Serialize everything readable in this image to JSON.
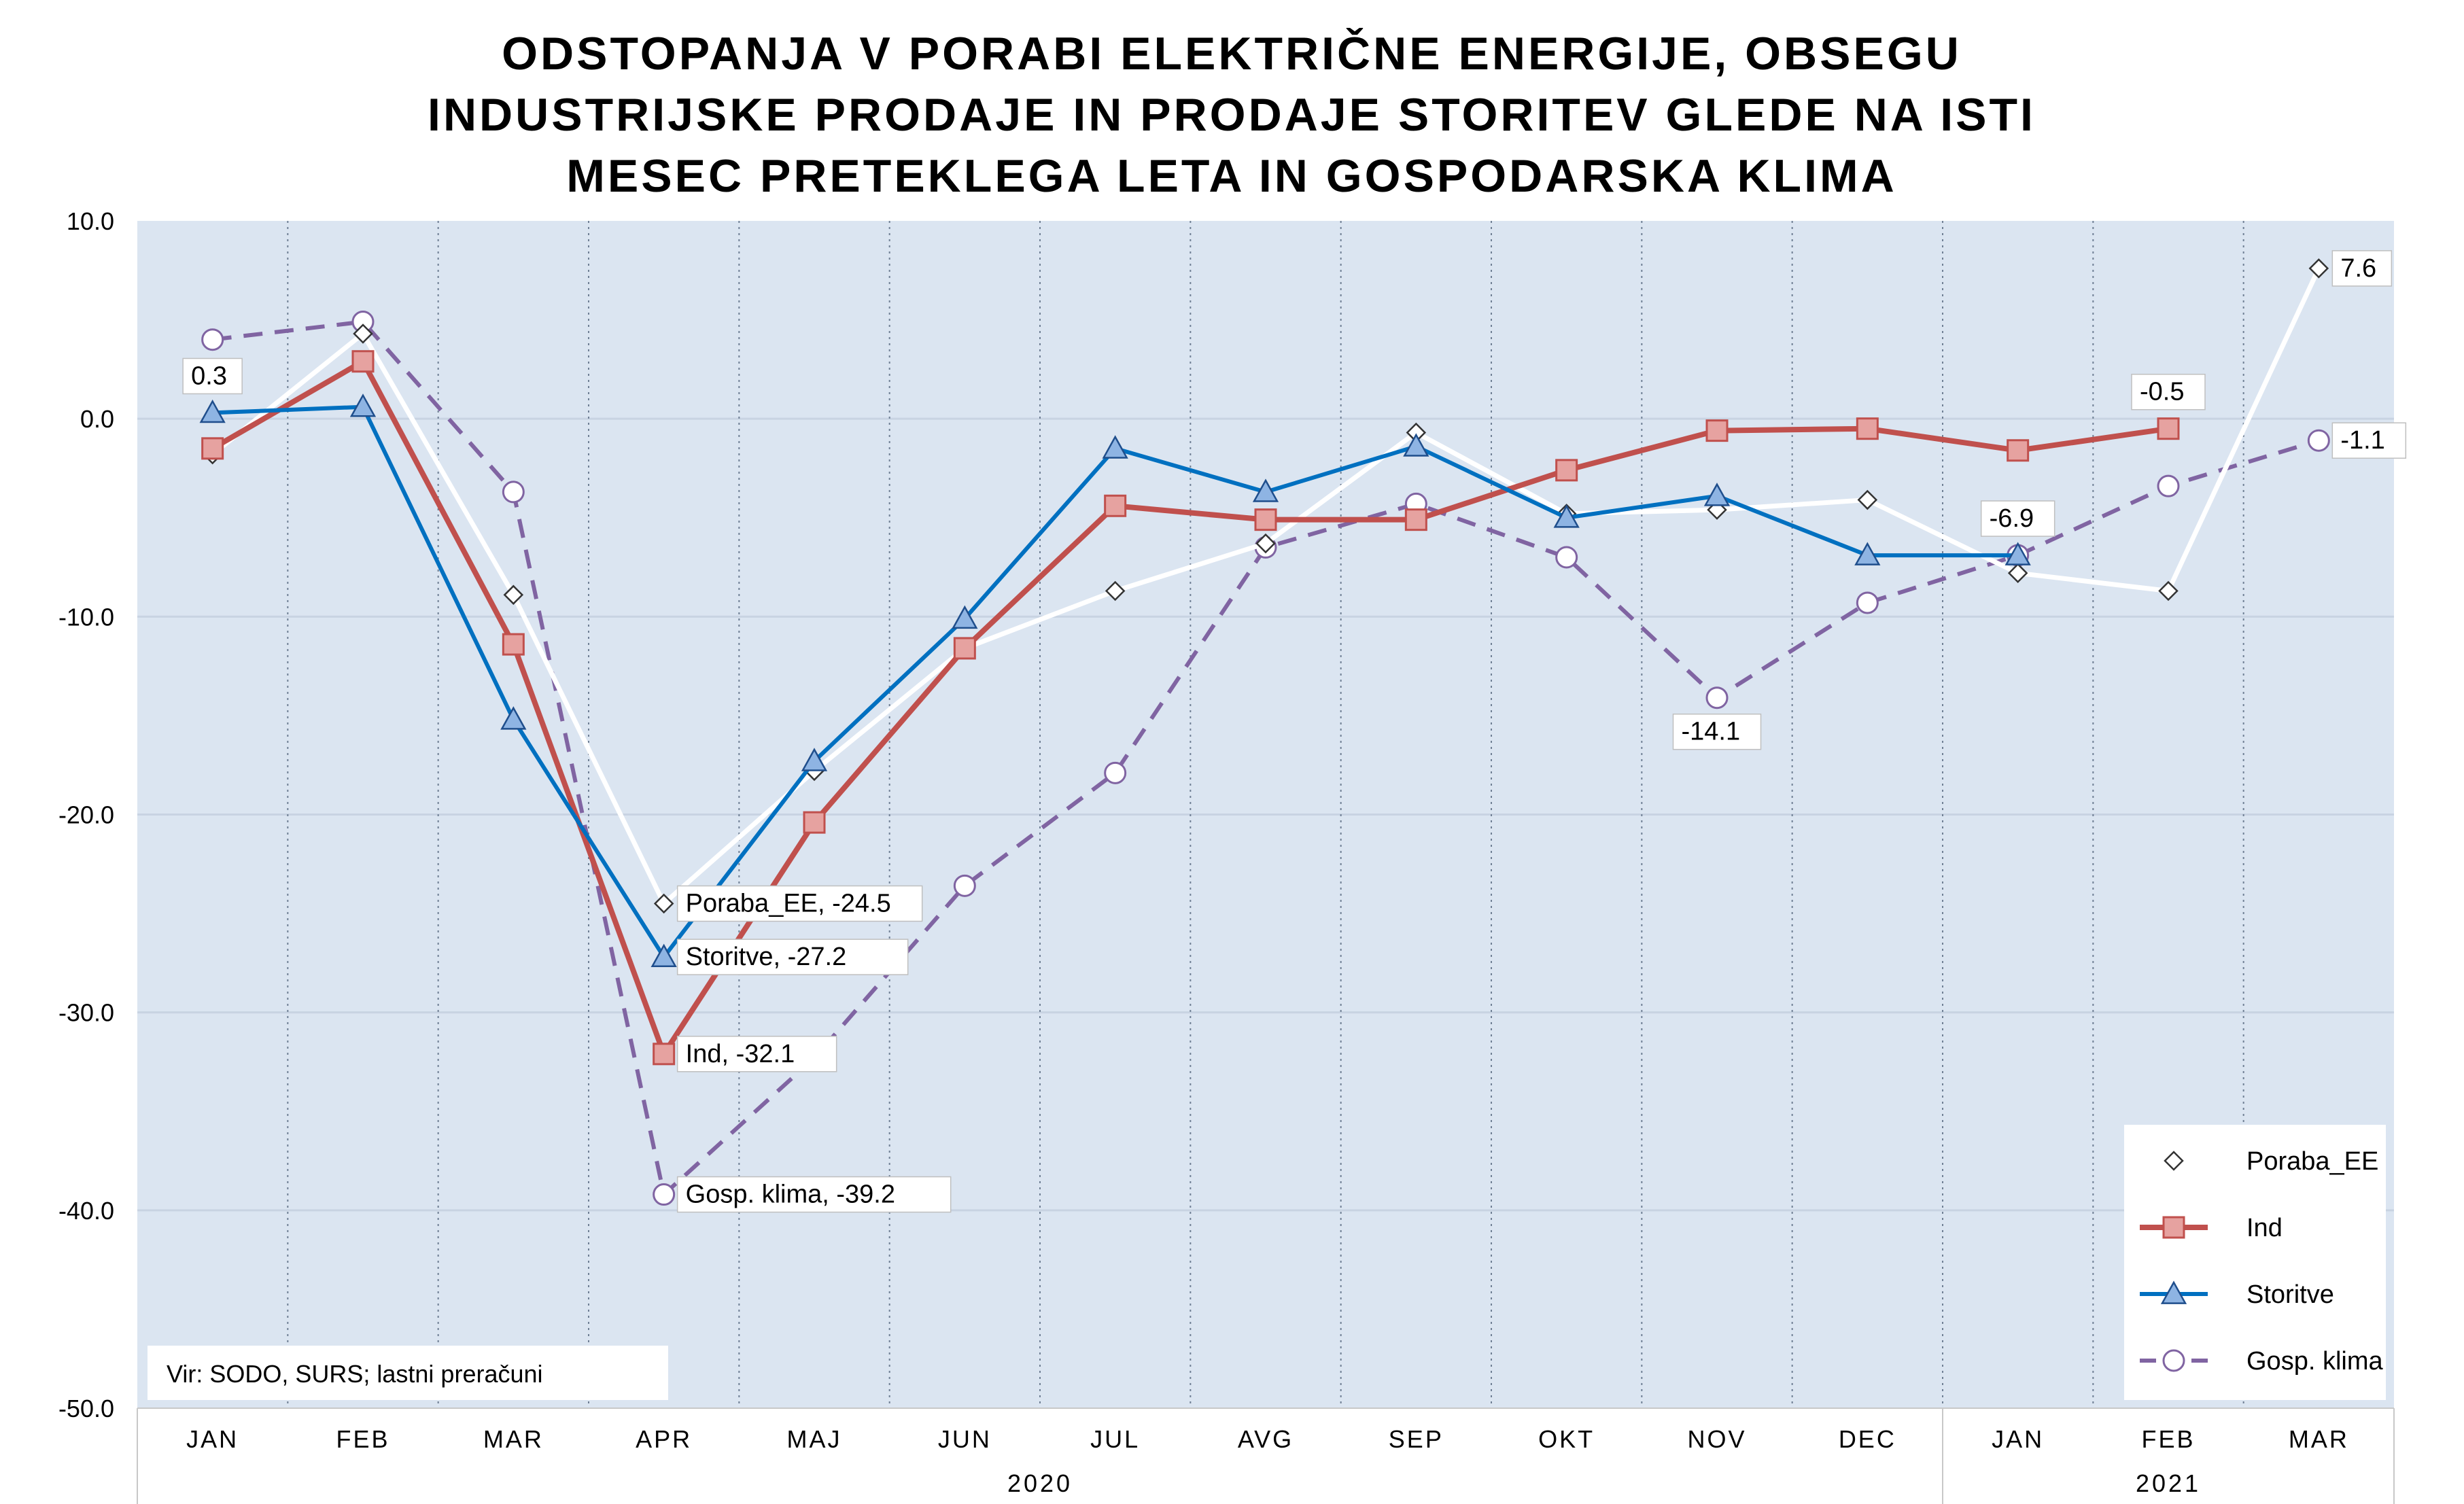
{
  "chart_data": {
    "type": "line",
    "title_lines": [
      "ODSTOPANJA V PORABI ELEKTRIČNE ENERGIJE, OBSEGU",
      "INDUSTRIJSKE PRODAJE IN PRODAJE STORITEV GLEDE NA ISTI",
      "MESEC PRETEKLEGA LETA IN GOSPODARSKA KLIMA"
    ],
    "categories": [
      "JAN",
      "FEB",
      "MAR",
      "APR",
      "MAJ",
      "JUN",
      "JUL",
      "AVG",
      "SEP",
      "OKT",
      "NOV",
      "DEC",
      "JAN",
      "FEB",
      "MAR"
    ],
    "year_groups": [
      {
        "label": "2020",
        "start": 0,
        "end": 11
      },
      {
        "label": "2021",
        "start": 12,
        "end": 14
      }
    ],
    "ylim": [
      -50,
      10
    ],
    "yticks": [
      "10.0",
      "0.0",
      "-10.0",
      "-20.0",
      "-30.0",
      "-40.0",
      "-50.0"
    ],
    "grid": true,
    "legend_position": "bottom-right",
    "source": "Vir: SODO, SURS; lastni preračuni",
    "series": [
      {
        "name": "Poraba_EE",
        "color": "#ffffff",
        "marker": "diamond",
        "values": [
          -1.8,
          4.3,
          -8.9,
          -24.5,
          -17.8,
          -11.6,
          -8.7,
          -6.3,
          -0.7,
          -4.8,
          -4.6,
          -4.1,
          -7.8,
          -8.7,
          7.6
        ]
      },
      {
        "name": "Ind",
        "color": "#c0504d",
        "marker": "square",
        "values": [
          -1.5,
          2.9,
          -11.4,
          -32.1,
          -20.4,
          -11.6,
          -4.4,
          -5.1,
          -5.1,
          -2.6,
          -0.6,
          -0.5,
          -1.6,
          -0.5,
          null
        ]
      },
      {
        "name": "Storitve",
        "color": "#0070c0",
        "marker": "triangle",
        "values": [
          0.3,
          0.6,
          -15.2,
          -27.2,
          -17.3,
          -10.1,
          -1.5,
          -3.7,
          -1.4,
          -5.0,
          -3.9,
          -6.9,
          -6.9,
          null,
          null
        ]
      },
      {
        "name": "Gosp. klima",
        "color": "#8064a2",
        "marker": "circle",
        "values": [
          4.0,
          4.9,
          -3.7,
          -39.2,
          -32.3,
          -23.6,
          -17.9,
          -6.5,
          -4.3,
          -7.0,
          -14.1,
          -9.3,
          -6.9,
          -3.4,
          -1.1
        ]
      }
    ],
    "annotations": [
      {
        "series": 2,
        "index": 0,
        "text": "0.3",
        "dir": "up"
      },
      {
        "series": 0,
        "index": 3,
        "text": "Poraba_EE, -24.5",
        "dir": "right"
      },
      {
        "series": 2,
        "index": 3,
        "text": "Storitve, -27.2",
        "dir": "right"
      },
      {
        "series": 1,
        "index": 3,
        "text": "Ind, -32.1",
        "dir": "right"
      },
      {
        "series": 3,
        "index": 3,
        "text": "Gosp. klima, -39.2",
        "dir": "right"
      },
      {
        "series": 3,
        "index": 10,
        "text": "-14.1",
        "dir": "down"
      },
      {
        "series": 3,
        "index": 12,
        "text": "-6.9",
        "dir": "up"
      },
      {
        "series": 1,
        "index": 13,
        "text": "-0.5",
        "dir": "up"
      },
      {
        "series": 0,
        "index": 14,
        "text": "7.6",
        "dir": "right"
      },
      {
        "series": 3,
        "index": 14,
        "text": "-1.1",
        "dir": "right"
      }
    ]
  }
}
